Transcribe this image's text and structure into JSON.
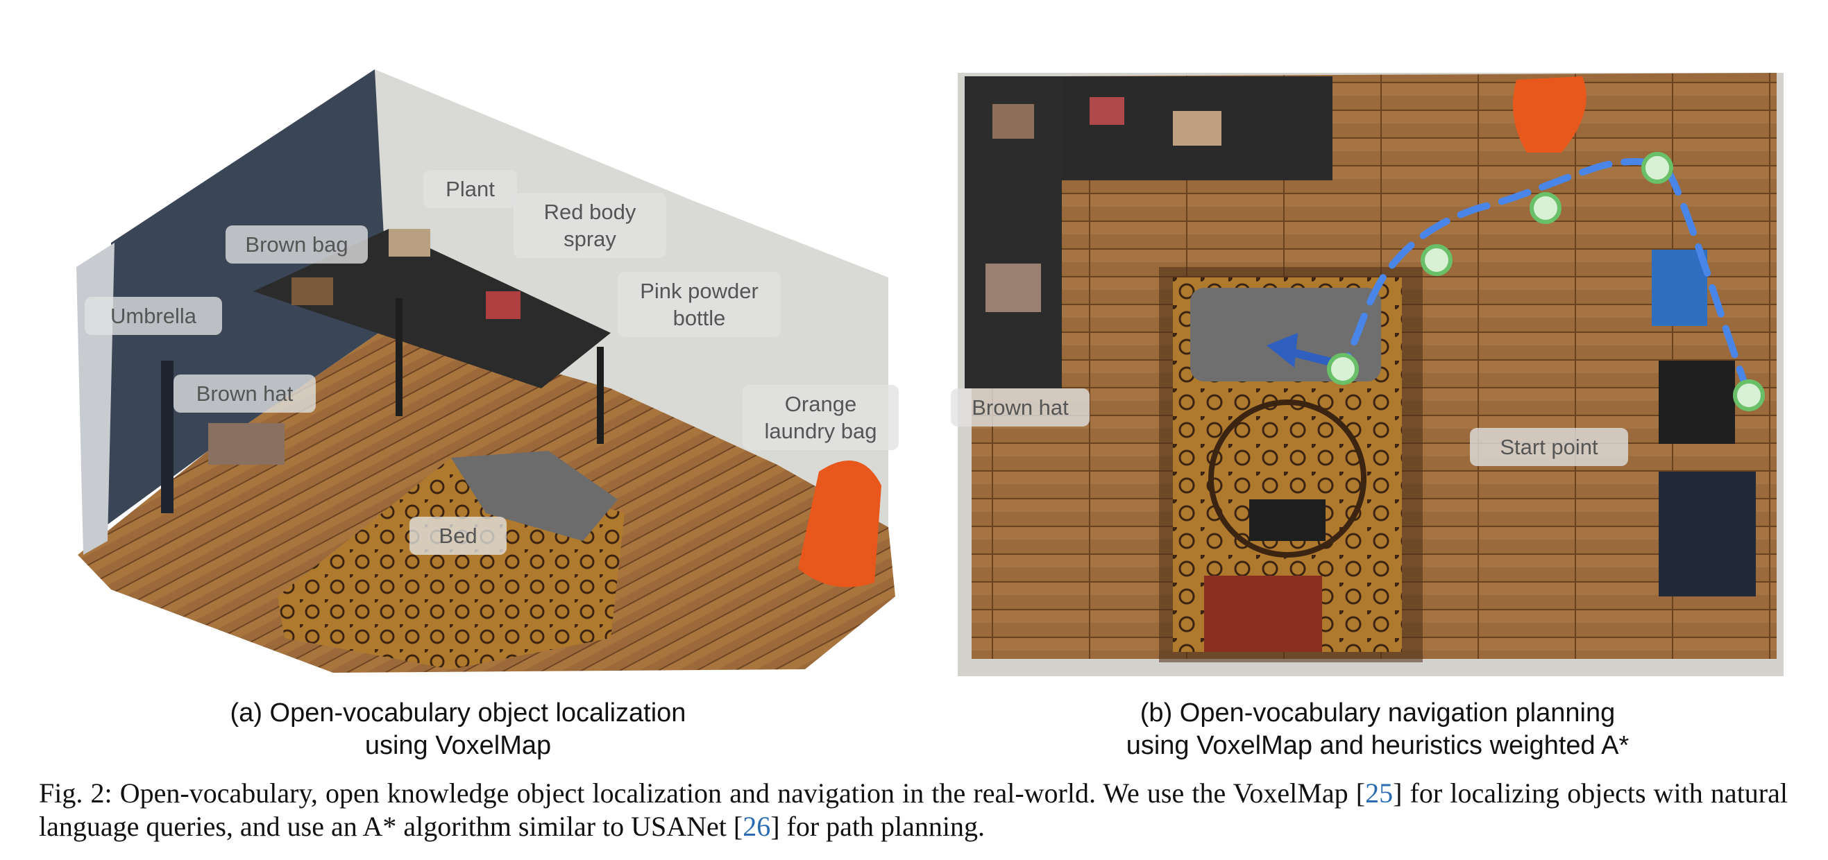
{
  "panel_a": {
    "labels": {
      "plant": "Plant",
      "red_body_spray": "Red body spray",
      "brown_bag": "Brown bag",
      "pink_powder_bottle": "Pink powder bottle",
      "umbrella": "Umbrella",
      "brown_hat": "Brown hat",
      "orange_laundry_bag": "Orange laundry bag",
      "bed": "Bed"
    },
    "caption_line1": "(a) Open-vocabulary object localization",
    "caption_line2": "using VoxelMap"
  },
  "panel_b": {
    "labels": {
      "brown_hat": "Brown hat",
      "start_point": "Start point"
    },
    "caption_line1": "(b) Open-vocabulary navigation planning",
    "caption_line2": "using VoxelMap and heuristics weighted A*"
  },
  "caption": {
    "part1": "Fig. 2: Open-vocabulary, open knowledge object localization and navigation in the real-world. We use the VoxelMap [",
    "ref1": "25",
    "part2": "] for localizing objects with natural language queries, and use an A* algorithm similar to USANet [",
    "ref2": "26",
    "part3": "] for path planning."
  },
  "colors": {
    "floor": "#9a6a3c",
    "path": "#4a86e8",
    "waypoint": "#6abf69",
    "wall": "#d9d9d6"
  }
}
